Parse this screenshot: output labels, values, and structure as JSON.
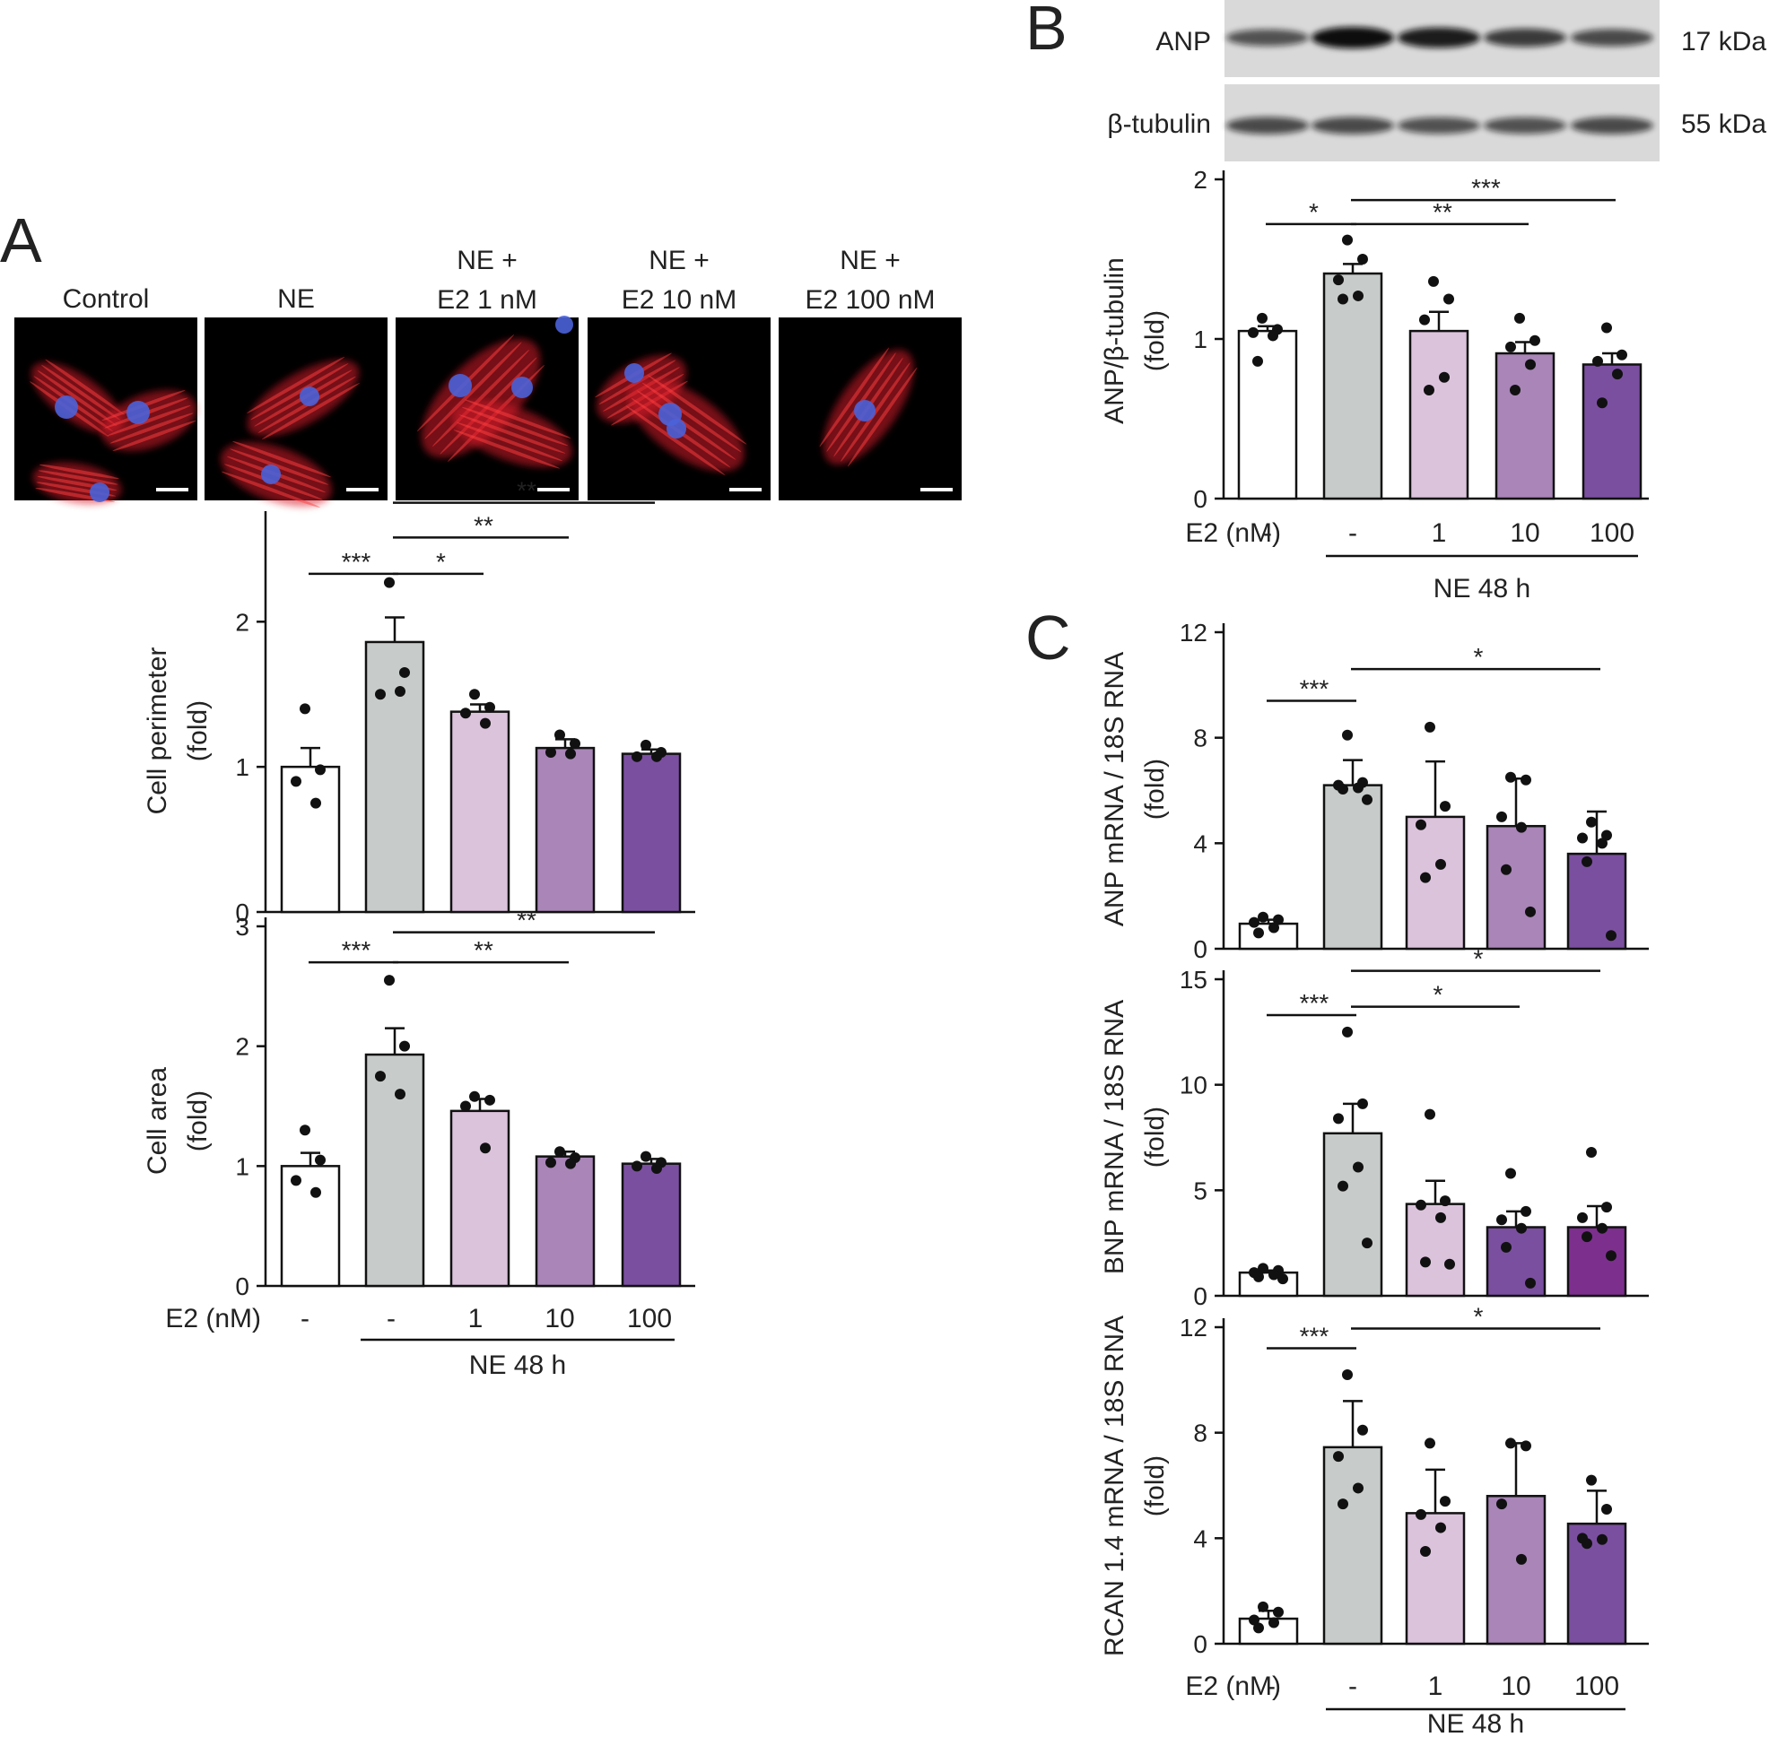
{
  "panels": {
    "A": "A",
    "B": "B",
    "C": "C"
  },
  "micrographs": {
    "labels": [
      [
        "Control"
      ],
      [
        "NE"
      ],
      [
        "NE +",
        "E2 1 nM"
      ],
      [
        "NE +",
        "E2 10 nM"
      ],
      [
        "NE +",
        "E2 100 nM"
      ]
    ]
  },
  "western_blot": {
    "bands": [
      {
        "protein": "ANP",
        "size": "17 kDa",
        "intensity": [
          0.55,
          1.0,
          0.9,
          0.7,
          0.6
        ]
      },
      {
        "protein": "β-tubulin",
        "size": "55 kDa",
        "intensity": [
          0.6,
          0.6,
          0.55,
          0.55,
          0.6
        ]
      }
    ]
  },
  "group_colors": [
    "#ffffff",
    "#c7ccca",
    "#dcc3dc",
    "#a985b8",
    "#7b4fa0"
  ],
  "bnp_colors": [
    "#ffffff",
    "#c7ccca",
    "#dcc3dc",
    "#7b4fa0",
    "#7d2f8e"
  ],
  "chart_data": [
    {
      "id": "cell-perimeter",
      "type": "bar",
      "categories": [
        "-",
        "-",
        "1",
        "10",
        "100"
      ],
      "values": [
        1.0,
        1.86,
        1.38,
        1.13,
        1.09
      ],
      "sem": [
        0.13,
        0.17,
        0.05,
        0.06,
        0.03
      ],
      "points": [
        [
          1.4,
          0.98,
          0.9,
          0.75
        ],
        [
          2.27,
          1.65,
          1.5,
          1.52
        ],
        [
          1.5,
          1.41,
          1.37,
          1.3
        ],
        [
          1.22,
          1.16,
          1.1,
          1.09
        ],
        [
          1.15,
          1.1,
          1.07,
          1.07
        ]
      ],
      "ylabel": [
        "Cell perimeter",
        "(fold)"
      ],
      "ylim": [
        0,
        2.7
      ],
      "yticks": [
        "0",
        "1",
        "2"
      ],
      "significance": [
        {
          "from": 0,
          "to": 1,
          "label": "***",
          "y": 2.33
        },
        {
          "from": 1,
          "to": 2,
          "label": "*",
          "y": 2.33
        },
        {
          "from": 1,
          "to": 3,
          "label": "**",
          "y": 2.58
        },
        {
          "from": 1,
          "to": 4,
          "label": "**",
          "y": 2.82
        }
      ]
    },
    {
      "id": "cell-area",
      "type": "bar",
      "categories": [
        "-",
        "-",
        "1",
        "10",
        "100"
      ],
      "values": [
        1.0,
        1.93,
        1.46,
        1.08,
        1.02
      ],
      "sem": [
        0.11,
        0.22,
        0.1,
        0.04,
        0.04
      ],
      "points": [
        [
          1.3,
          1.05,
          0.88,
          0.78
        ],
        [
          2.55,
          2.0,
          1.75,
          1.6
        ],
        [
          1.58,
          1.55,
          1.5,
          1.15
        ],
        [
          1.12,
          1.07,
          1.03,
          1.02
        ],
        [
          1.08,
          1.03,
          1.0,
          0.98
        ]
      ],
      "ylabel": [
        "Cell area",
        "(fold)"
      ],
      "ylim": [
        0,
        3
      ],
      "yticks": [
        "0",
        "1",
        "2",
        "3"
      ],
      "significance": [
        {
          "from": 0,
          "to": 1,
          "label": "***",
          "y": 2.7
        },
        {
          "from": 1,
          "to": 3,
          "label": "**",
          "y": 2.7
        },
        {
          "from": 1,
          "to": 4,
          "label": "**",
          "y": 2.95
        }
      ]
    },
    {
      "id": "anp-protein",
      "type": "bar",
      "categories": [
        "-",
        "-",
        "1",
        "10",
        "100"
      ],
      "values": [
        1.05,
        1.41,
        1.05,
        0.91,
        0.84
      ],
      "sem": [
        0.03,
        0.06,
        0.12,
        0.07,
        0.07
      ],
      "points": [
        [
          1.13,
          1.06,
          1.04,
          1.02,
          0.86
        ],
        [
          1.62,
          1.5,
          1.37,
          1.27,
          1.25
        ],
        [
          1.36,
          1.25,
          1.12,
          0.76,
          0.68
        ],
        [
          1.13,
          0.99,
          0.95,
          0.84,
          0.68
        ],
        [
          1.07,
          0.9,
          0.86,
          0.78,
          0.6
        ]
      ],
      "ylabel": [
        "ANP/β-tubulin",
        "(fold)"
      ],
      "ylim": [
        0,
        2
      ],
      "yticks": [
        "0",
        "1",
        "2"
      ],
      "significance": [
        {
          "from": 0,
          "to": 1,
          "label": "*",
          "y": 1.72
        },
        {
          "from": 1,
          "to": 3,
          "label": "**",
          "y": 1.72
        },
        {
          "from": 1,
          "to": 4,
          "label": "***",
          "y": 1.87
        }
      ]
    },
    {
      "id": "anp-mrna",
      "type": "bar",
      "categories": [
        "-",
        "-",
        "1",
        "10",
        "100"
      ],
      "values": [
        0.95,
        6.2,
        5.0,
        4.65,
        3.6
      ],
      "sem": [
        0.15,
        0.95,
        2.1,
        1.8,
        1.6
      ],
      "points": [
        [
          1.2,
          1.1,
          1.0,
          0.8,
          0.6
        ],
        [
          8.1,
          6.3,
          6.2,
          6.1,
          6.05,
          5.65
        ],
        [
          8.4,
          5.4,
          4.7,
          3.2,
          2.7
        ],
        [
          6.5,
          6.4,
          5.0,
          4.6,
          3.0,
          1.4
        ],
        [
          4.8,
          4.3,
          4.2,
          4.0,
          3.3,
          0.5
        ]
      ],
      "ylabel": [
        "ANP mRNA / 18S RNA",
        "(fold)"
      ],
      "ylim": [
        0,
        12
      ],
      "yticks": [
        "0",
        "4",
        "8",
        "12"
      ],
      "significance": [
        {
          "from": 0,
          "to": 1,
          "label": "***",
          "y": 9.4
        },
        {
          "from": 1,
          "to": 4,
          "label": "*",
          "y": 10.6
        }
      ]
    },
    {
      "id": "bnp-mrna",
      "type": "bar",
      "categories": [
        "-",
        "-",
        "1",
        "10",
        "100"
      ],
      "values": [
        1.1,
        7.7,
        4.35,
        3.25,
        3.25
      ],
      "sem": [
        0.1,
        1.4,
        1.1,
        0.75,
        1.0
      ],
      "points": [
        [
          1.3,
          1.2,
          1.1,
          1.0,
          0.9,
          0.8
        ],
        [
          12.5,
          9.1,
          8.4,
          6.1,
          5.2,
          2.5
        ],
        [
          8.6,
          4.5,
          4.3,
          3.7,
          1.6,
          1.5
        ],
        [
          5.8,
          4.0,
          3.6,
          3.2,
          2.3,
          0.6
        ],
        [
          6.8,
          4.2,
          3.7,
          3.2,
          2.8,
          1.9
        ]
      ],
      "ylabel": [
        "BNP mRNA / 18S RNA",
        "(fold)"
      ],
      "ylim": [
        0,
        15
      ],
      "yticks": [
        "0",
        "5",
        "10",
        "15"
      ],
      "significance": [
        {
          "from": 0,
          "to": 1,
          "label": "***",
          "y": 13.3
        },
        {
          "from": 1,
          "to": 3,
          "label": "*",
          "y": 13.7
        },
        {
          "from": 1,
          "to": 4,
          "label": "*",
          "y": 15.4
        }
      ]
    },
    {
      "id": "rcan-mrna",
      "type": "bar",
      "categories": [
        "-",
        "-",
        "1",
        "10",
        "100"
      ],
      "values": [
        0.95,
        7.45,
        4.95,
        5.6,
        4.55
      ],
      "sem": [
        0.3,
        1.75,
        1.65,
        2.0,
        1.25
      ],
      "points": [
        [
          1.4,
          1.2,
          0.9,
          0.8,
          0.6
        ],
        [
          10.2,
          8.1,
          7.1,
          5.9,
          5.3
        ],
        [
          7.6,
          5.4,
          4.9,
          4.4,
          3.5
        ],
        [
          7.6,
          7.5,
          5.3,
          3.2
        ],
        [
          6.2,
          5.1,
          4.0,
          3.95,
          3.8
        ]
      ],
      "ylabel": [
        "RCAN 1.4 mRNA / 18S RNA",
        "(fold)"
      ],
      "ylim": [
        0,
        12
      ],
      "yticks": [
        "0",
        "4",
        "8",
        "12"
      ],
      "significance": [
        {
          "from": 0,
          "to": 1,
          "label": "***",
          "y": 11.2
        },
        {
          "from": 1,
          "to": 4,
          "label": "*",
          "y": 11.95
        }
      ]
    }
  ],
  "xaxis": {
    "e2_label": "E2 (nM)",
    "categories": [
      "-",
      "-",
      "1",
      "10",
      "100"
    ],
    "treatment": "NE 48 h"
  }
}
